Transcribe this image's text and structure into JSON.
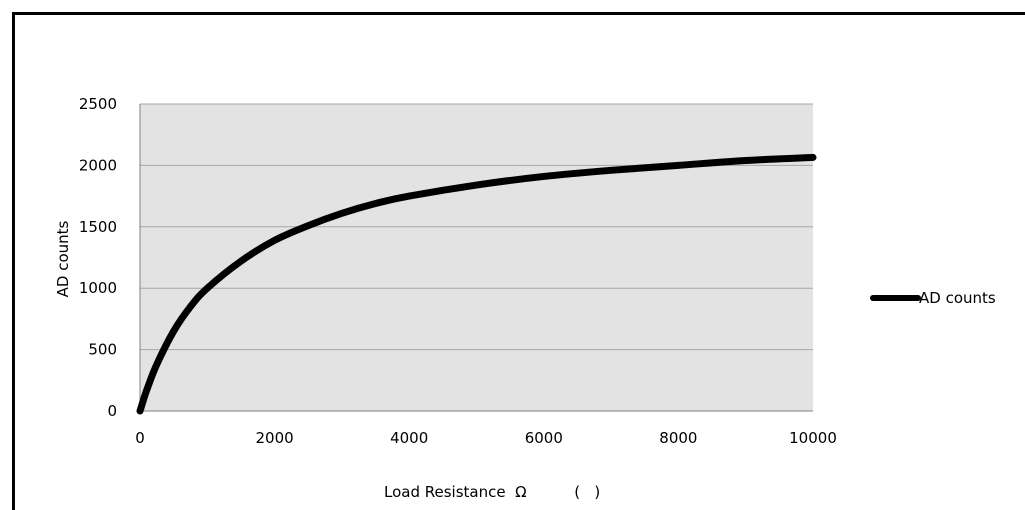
{
  "chart_data": {
    "type": "line",
    "xlabel": "Load Resistance  Ω          (   )",
    "ylabel": "AD counts",
    "xlim": [
      0,
      10000
    ],
    "ylim": [
      0,
      2500
    ],
    "xticks": [
      0,
      2000,
      4000,
      6000,
      8000,
      10000
    ],
    "yticks": [
      0,
      500,
      1000,
      1500,
      2000,
      2500
    ],
    "grid": true,
    "legend_position": "right",
    "colors": {
      "plot_background": "#e3e3e3",
      "line": "#000000",
      "grid": "#a6a6a6"
    },
    "series": [
      {
        "name": "AD counts",
        "x": [
          0,
          100,
          250,
          500,
          750,
          1000,
          1500,
          2000,
          2500,
          3000,
          3500,
          4000,
          5000,
          6000,
          7000,
          8000,
          9000,
          10000
        ],
        "y": [
          0,
          170,
          380,
          650,
          850,
          1000,
          1220,
          1390,
          1510,
          1610,
          1690,
          1750,
          1840,
          1910,
          1960,
          2000,
          2040,
          2065
        ]
      }
    ]
  }
}
